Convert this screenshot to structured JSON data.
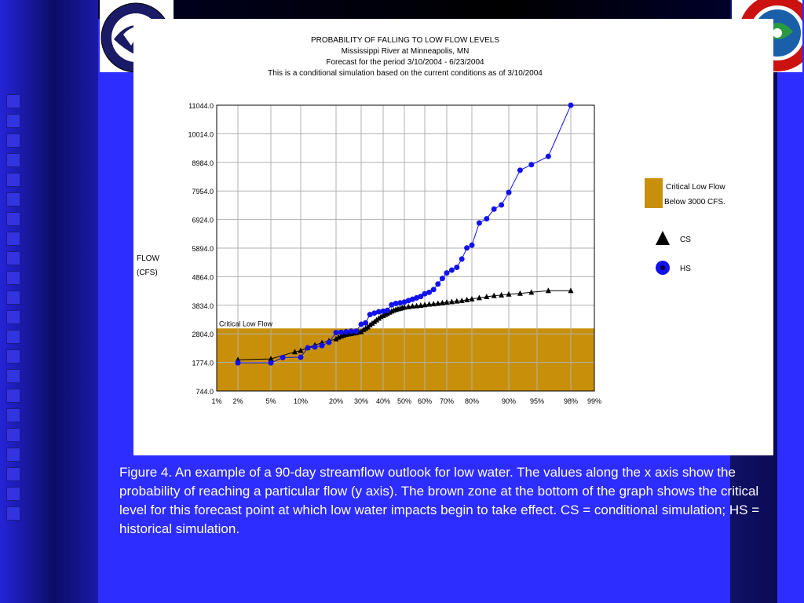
{
  "chart_data": {
    "type": "line",
    "title": "PROBABILITY OF FALLING TO LOW FLOW LEVELS",
    "subtitle_lines": [
      "Mississippi River at Minneapolis, MN",
      "Forecast for the period 3/10/2004 - 6/23/2004",
      "This is a conditional simulation based on the current conditions as of 3/10/2004"
    ],
    "ylabel_lines": [
      "FLOW",
      "(CFS)"
    ],
    "xlabel": "",
    "y_ticks": [
      "744.0",
      "1774.0",
      "2804.0",
      "3834.0",
      "4864.0",
      "5894.0",
      "6924.0",
      "7954.0",
      "8984.0",
      "10014.0",
      "11044.0"
    ],
    "ylim": [
      744,
      11044
    ],
    "x_tick_labels": [
      "1%",
      "2%",
      "5%",
      "10%",
      "20%",
      "30%",
      "40%",
      "50%",
      "60%",
      "70%",
      "80%",
      "90%",
      "95%",
      "98%",
      "99%"
    ],
    "x_ticks": [
      1,
      2,
      5,
      10,
      20,
      30,
      40,
      50,
      60,
      70,
      80,
      90,
      95,
      98,
      99
    ],
    "x_scale": "normal-probability",
    "critical_zone": {
      "upper": 3000,
      "label": "Critical Low Flow",
      "color": "#c8900a"
    },
    "legend": {
      "position": "right",
      "zone_label_lines": [
        "Critical Low Flow",
        "Below 3000 CFS."
      ]
    },
    "series": [
      {
        "name": "CS",
        "marker": "triangle",
        "color": "#000000",
        "x": [
          2,
          5,
          9,
          10,
          12,
          14,
          16,
          18,
          20,
          21,
          22,
          23,
          24,
          25,
          26,
          27,
          28,
          29,
          30,
          31,
          32,
          33,
          34,
          35,
          36,
          37,
          38,
          39,
          40,
          41,
          42,
          43,
          44,
          45,
          46,
          47,
          48,
          49,
          50,
          52,
          54,
          56,
          58,
          60,
          62,
          64,
          66,
          68,
          70,
          72,
          74,
          76,
          78,
          80,
          82,
          84,
          86,
          88,
          90,
          92,
          94,
          96,
          98
        ],
        "y": [
          1870,
          1900,
          2150,
          2200,
          2300,
          2400,
          2480,
          2550,
          2620,
          2680,
          2720,
          2750,
          2780,
          2800,
          2810,
          2830,
          2850,
          2870,
          2880,
          2950,
          3000,
          3050,
          3120,
          3180,
          3240,
          3300,
          3360,
          3420,
          3460,
          3500,
          3540,
          3580,
          3620,
          3650,
          3680,
          3700,
          3720,
          3740,
          3760,
          3780,
          3800,
          3810,
          3830,
          3850,
          3870,
          3880,
          3900,
          3920,
          3940,
          3960,
          3980,
          4000,
          4030,
          4060,
          4100,
          4140,
          4180,
          4200,
          4230,
          4260,
          4300,
          4360,
          4360
        ]
      },
      {
        "name": "HS",
        "marker": "circle",
        "color": "#1111ee",
        "x": [
          2,
          5,
          7,
          10,
          12,
          14,
          16,
          18,
          20,
          22,
          24,
          26,
          28,
          30,
          32,
          34,
          36,
          38,
          40,
          42,
          44,
          46,
          48,
          50,
          52,
          54,
          56,
          58,
          60,
          62,
          64,
          66,
          68,
          70,
          72,
          74,
          76,
          78,
          80,
          82,
          84,
          86,
          88,
          90,
          92,
          94,
          96,
          98
        ],
        "y": [
          1760,
          1760,
          1950,
          1960,
          2300,
          2330,
          2380,
          2500,
          2850,
          2860,
          2880,
          2900,
          2900,
          3150,
          3200,
          3500,
          3550,
          3600,
          3620,
          3650,
          3850,
          3900,
          3920,
          3950,
          4000,
          4050,
          4100,
          4150,
          4250,
          4300,
          4400,
          4600,
          4800,
          5000,
          5100,
          5200,
          5500,
          5900,
          6000,
          6800,
          6950,
          7300,
          7450,
          7900,
          8700,
          8900,
          9200,
          11044
        ]
      }
    ]
  },
  "caption": "Figure 4. An example of a 90-day streamflow outlook for low water. The values along the x axis show the probability of reaching a particular flow (y axis). The brown zone at the bottom of the graph shows the critical level for this forecast point at which low water impacts begin to take effect.  CS = conditional simulation; HS = historical simulation.",
  "colors": {
    "background": "#2d2dff",
    "zone": "#c8900a",
    "hs_series": "#1111ee",
    "cs_series": "#000000"
  },
  "logos": {
    "left": "noaa-logo",
    "right": "nws-logo"
  }
}
